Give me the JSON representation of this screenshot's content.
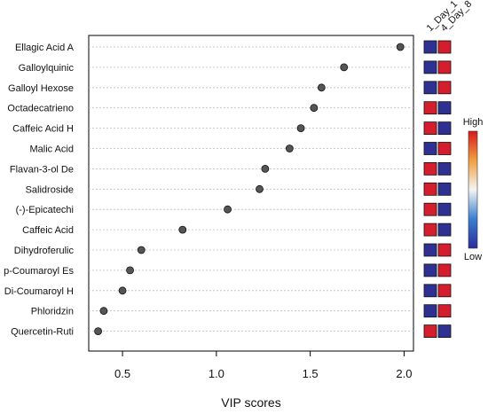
{
  "chart_data": {
    "type": "scatter",
    "title": "",
    "xlabel": "VIP scores",
    "ylabel": "",
    "xlim": [
      0.32,
      2.05
    ],
    "xticks": [
      "0.5",
      "1.0",
      "1.5",
      "2.0"
    ],
    "grid": "horizontal dotted",
    "categories": [
      "Ellagic Acid A",
      "Galloylquinic",
      "Galloyl Hexose",
      "Octadecatrieno",
      "Caffeic Acid H",
      "Malic Acid",
      "Flavan-3-ol De",
      "Salidroside",
      "(-)-Epicatechi",
      "Caffeic Acid",
      "Dihydroferulic",
      "p-Coumaroyl Es",
      "Di-Coumaroyl H",
      "Phloridzin",
      "Quercetin-Ruti"
    ],
    "values": [
      1.98,
      1.68,
      1.56,
      1.52,
      1.45,
      1.39,
      1.26,
      1.23,
      1.06,
      0.82,
      0.6,
      0.54,
      0.5,
      0.4,
      0.37
    ],
    "heatmap": {
      "groups": [
        "1_Day_1",
        "4_Day_8"
      ],
      "levels": [
        [
          "low",
          "high"
        ],
        [
          "low",
          "high"
        ],
        [
          "low",
          "high"
        ],
        [
          "high",
          "low"
        ],
        [
          "high",
          "low"
        ],
        [
          "low",
          "high"
        ],
        [
          "high",
          "low"
        ],
        [
          "high",
          "low"
        ],
        [
          "high",
          "low"
        ],
        [
          "high",
          "low"
        ],
        [
          "low",
          "high"
        ],
        [
          "low",
          "high"
        ],
        [
          "low",
          "high"
        ],
        [
          "low",
          "high"
        ],
        [
          "high",
          "low"
        ]
      ]
    },
    "legend": {
      "high_label": "High",
      "low_label": "Low",
      "placement": "right",
      "high_color": "#d7191c",
      "mid_color": "#f7f7f7",
      "low_color": "#2c2c9c"
    },
    "colors": {
      "point": "#555555",
      "high": "#d41e2e",
      "low": "#2e3192"
    }
  }
}
